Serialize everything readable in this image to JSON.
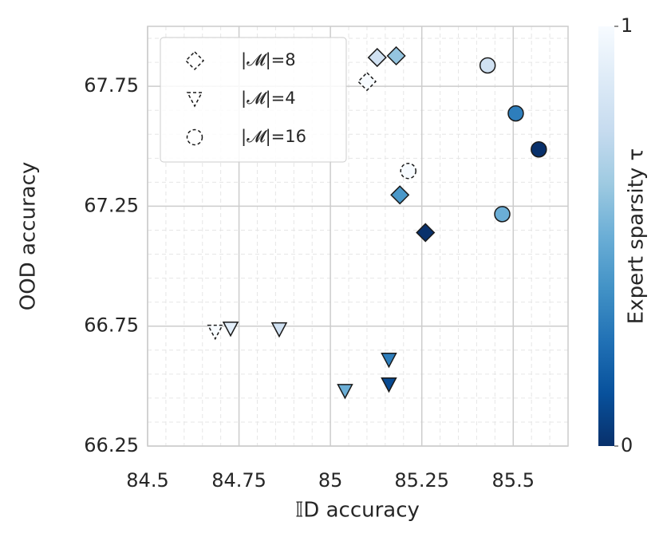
{
  "chart_data": {
    "type": "scatter",
    "xlabel": "𝕀D accuracy",
    "ylabel": "OOD accuracy",
    "xlim": [
      84.5,
      85.65
    ],
    "xticks": [
      84.5,
      84.75,
      85.0,
      85.25,
      85.5
    ],
    "ylim": [
      66.25,
      68.0
    ],
    "yticks": [
      66.25,
      66.75,
      67.25,
      67.75
    ],
    "grid": true,
    "legend": "upper left",
    "colorbar": {
      "label": "Expert sparsity τ",
      "clim": [
        0,
        1
      ],
      "ticks": [
        0,
        1
      ],
      "colormap": "Blues_r"
    },
    "series": [
      {
        "name": "|𝓜|=8",
        "marker": "diamond",
        "x": [
          85.1,
          85.128,
          85.18,
          85.19,
          85.26
        ],
        "y": [
          67.77,
          67.87,
          67.877,
          67.297,
          67.14
        ],
        "c": [
          1,
          0.8,
          0.6,
          0.4,
          0.0
        ]
      },
      {
        "name": "|𝓜|=4",
        "marker": "triangle-down",
        "x": [
          84.685,
          84.727,
          84.86,
          85.04,
          85.16,
          85.16
        ],
        "y": [
          66.727,
          66.74,
          66.737,
          66.48,
          66.61,
          66.507
        ],
        "c": [
          1,
          0.9,
          0.8,
          0.5,
          0.3,
          0.1
        ]
      },
      {
        "name": "|𝓜|=16",
        "marker": "circle",
        "x": [
          85.43,
          85.507,
          85.57,
          85.47,
          85.213
        ],
        "y": [
          67.837,
          67.637,
          67.487,
          67.217,
          67.397
        ],
        "c": [
          0.8,
          0.3,
          0.0,
          0.5,
          1
        ]
      }
    ]
  }
}
